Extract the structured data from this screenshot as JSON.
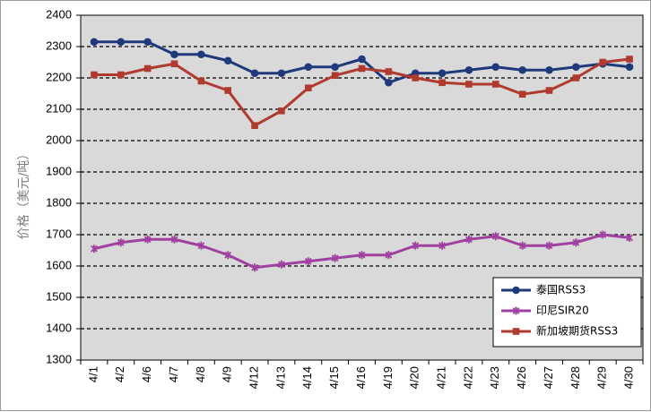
{
  "chart_data": {
    "type": "line",
    "title": "",
    "xlabel": "",
    "ylabel": "价格（美元/吨）",
    "ylim": [
      1300,
      2400
    ],
    "yticks": [
      1300,
      1400,
      1500,
      1600,
      1700,
      1800,
      1900,
      2000,
      2100,
      2200,
      2300,
      2400
    ],
    "grid": "horizontal dashed",
    "plot_background": "#d9d9d9",
    "legend_position": "bottom-right",
    "categories": [
      "4/1",
      "4/2",
      "4/6",
      "4/7",
      "4/8",
      "4/9",
      "4/12",
      "4/13",
      "4/14",
      "4/15",
      "4/16",
      "4/19",
      "4/20",
      "4/21",
      "4/22",
      "4/23",
      "4/26",
      "4/27",
      "4/28",
      "4/29",
      "4/30"
    ],
    "series": [
      {
        "name": "泰国RSS3",
        "color": "#1f3a7a",
        "marker": "circle",
        "values": [
          2315,
          2315,
          2315,
          2275,
          2275,
          2255,
          2215,
          2215,
          2235,
          2235,
          2260,
          2185,
          2215,
          2215,
          2225,
          2235,
          2225,
          2225,
          2235,
          2245,
          2235
        ]
      },
      {
        "name": "印尼SIR20",
        "color": "#a040a0",
        "marker": "asterisk",
        "values": [
          1655,
          1675,
          1685,
          1685,
          1665,
          1635,
          1595,
          1605,
          1615,
          1625,
          1635,
          1635,
          1665,
          1665,
          1685,
          1695,
          1665,
          1665,
          1675,
          1700,
          1690
        ]
      },
      {
        "name": "新加坡期货RSS3",
        "color": "#b03a2e",
        "marker": "square",
        "values": [
          2210,
          2210,
          2230,
          2245,
          2190,
          2160,
          2048,
          2095,
          2168,
          2208,
          2230,
          2220,
          2200,
          2185,
          2180,
          2180,
          2148,
          2160,
          2200,
          2250,
          2260
        ]
      }
    ]
  }
}
